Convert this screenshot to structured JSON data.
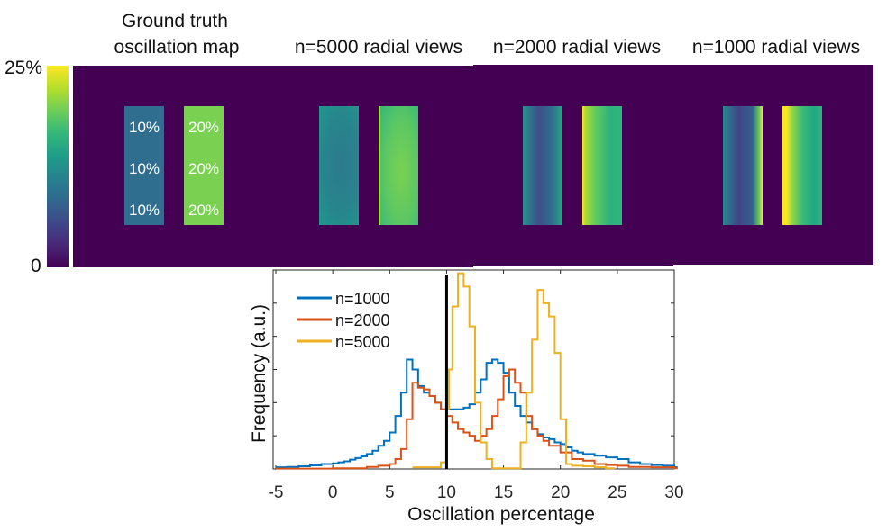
{
  "colorbar": {
    "max_label": "25%",
    "min_label": "0",
    "colormap": "viridis"
  },
  "panels": [
    {
      "title_line1": "Ground truth",
      "title_line2": "oscillation map",
      "left_labels": [
        "10%",
        "10%",
        "10%"
      ],
      "right_labels": [
        "20%",
        "20%",
        "20%"
      ],
      "left_color": "#2f6e8e",
      "right_color": "#7ad151"
    },
    {
      "title": "n=5000 radial views"
    },
    {
      "title": "n=2000 radial views"
    },
    {
      "title": "n=1000 radial views"
    }
  ],
  "chart_data": {
    "type": "line",
    "xlabel": "Oscillation percentage",
    "ylabel": "Frequency (a.u.)",
    "xlim": [
      -5,
      30
    ],
    "ylim": [
      0,
      6
    ],
    "xticks": [
      "-5",
      "0",
      "5",
      "10",
      "15",
      "20",
      "25",
      "30"
    ],
    "grid": false,
    "legend_position": "top-left",
    "reference_line_x": 10,
    "series": [
      {
        "name": "n=1000",
        "color": "#0072BD",
        "x": [
          -5,
          -4,
          -3,
          -2,
          -1,
          0,
          0.5,
          1,
          1.5,
          2,
          2.5,
          3,
          3.5,
          4,
          4.5,
          5,
          5.5,
          6,
          6.5,
          7,
          7.5,
          8,
          8.5,
          9,
          9.5,
          10,
          10.5,
          11,
          11.5,
          12,
          12.5,
          13,
          13.5,
          14,
          14.5,
          15,
          15.5,
          16,
          16.5,
          17,
          17.5,
          18,
          18.5,
          19,
          19.5,
          20,
          20.5,
          21,
          21.5,
          22,
          23,
          24,
          25,
          26,
          27,
          28,
          29,
          30
        ],
        "y": [
          0.05,
          0.06,
          0.08,
          0.11,
          0.15,
          0.17,
          0.2,
          0.23,
          0.28,
          0.33,
          0.38,
          0.45,
          0.55,
          0.7,
          0.85,
          1.1,
          1.6,
          2.3,
          3.3,
          3.0,
          2.5,
          2.3,
          2.2,
          2.0,
          1.8,
          1.8,
          1.8,
          1.8,
          1.85,
          1.95,
          2.3,
          2.7,
          3.2,
          3.3,
          3.2,
          2.9,
          2.3,
          1.9,
          1.6,
          1.4,
          1.2,
          1.05,
          0.95,
          0.9,
          0.8,
          0.75,
          0.65,
          0.55,
          0.5,
          0.45,
          0.4,
          0.35,
          0.3,
          0.2,
          0.15,
          0.12,
          0.1,
          0.05
        ]
      },
      {
        "name": "n=2000",
        "color": "#D95319",
        "x": [
          -5,
          0,
          2,
          3,
          4,
          5,
          5.5,
          6,
          6.5,
          7,
          7.5,
          8,
          8.5,
          9,
          9.5,
          10,
          10.5,
          11,
          11.5,
          12,
          12.5,
          13,
          13.5,
          14,
          14.5,
          15,
          15.5,
          16,
          16.5,
          17,
          17.5,
          18,
          18.5,
          19,
          20,
          21,
          22,
          23,
          24,
          25,
          26,
          28,
          30
        ],
        "y": [
          0.01,
          0.02,
          0.02,
          0.06,
          0.1,
          0.15,
          0.3,
          0.6,
          1.5,
          2.6,
          2.45,
          2.4,
          2.2,
          2.0,
          1.8,
          1.6,
          1.4,
          1.2,
          1.1,
          1.0,
          0.85,
          1.0,
          1.2,
          1.6,
          2.1,
          2.8,
          3.0,
          2.6,
          2.3,
          1.6,
          1.2,
          1.0,
          0.85,
          0.7,
          0.5,
          0.3,
          0.25,
          0.15,
          0.12,
          0.1,
          0.06,
          0.05,
          0.02
        ]
      },
      {
        "name": "n=5000",
        "color": "#EDB120",
        "x": [
          7,
          9.5,
          10,
          10.2,
          10.5,
          11,
          11.5,
          12,
          12.5,
          13,
          13.5,
          14,
          16,
          16.5,
          17,
          17.5,
          18,
          18.5,
          19,
          19.5,
          20,
          20.5,
          21,
          22,
          23,
          24,
          24.5
        ],
        "y": [
          0.05,
          0.2,
          1.8,
          3.0,
          4.9,
          5.9,
          5.5,
          4.3,
          2.0,
          0.8,
          0.3,
          0.02,
          0.02,
          0.8,
          2.3,
          3.9,
          5.4,
          5.0,
          4.6,
          3.5,
          1.5,
          0.15,
          0.1,
          0.08,
          0.05,
          0.02,
          0.02
        ]
      }
    ]
  }
}
